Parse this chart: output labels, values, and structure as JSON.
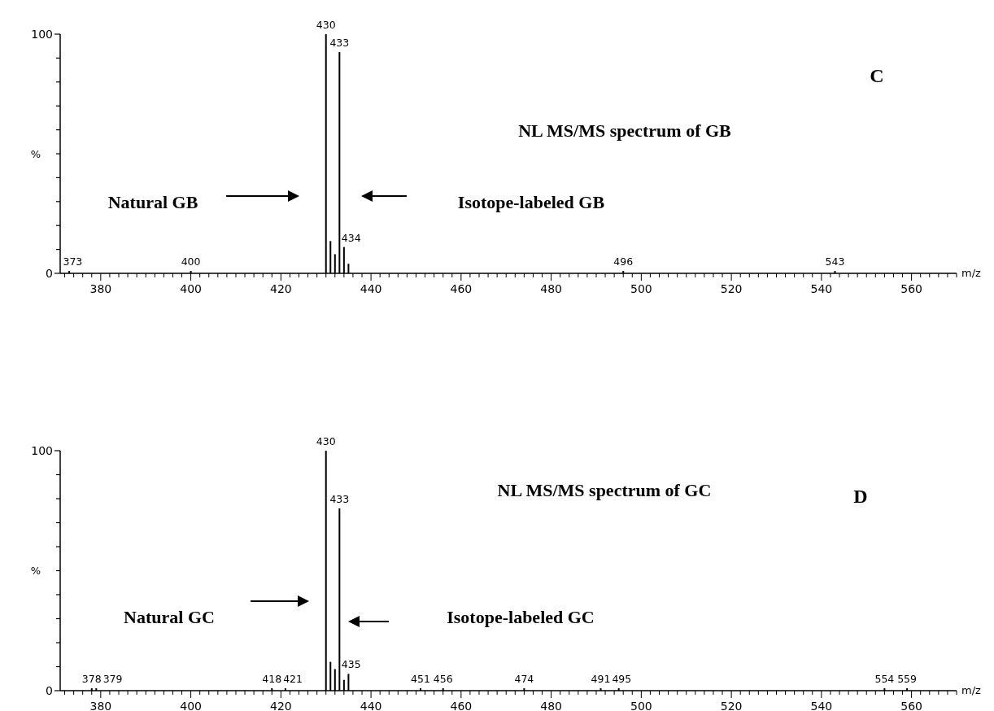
{
  "chart_data": [
    {
      "type": "bar",
      "title": "NL MS/MS spectrum of GB",
      "xlabel": "m/z",
      "ylabel": "%",
      "annotations": [
        "C",
        "Natural GB",
        "Isotope-labeled GB",
        {
          "text": "373",
          "x": 373,
          "y": 1
        },
        {
          "text": "400",
          "x": 400,
          "y": 1
        },
        {
          "text": "430",
          "x": 430,
          "y": 100
        },
        {
          "text": "433",
          "x": 433,
          "y": 92.5
        },
        {
          "text": "434",
          "x": 434,
          "y": 11
        },
        {
          "text": "496",
          "x": 496,
          "y": 1
        },
        {
          "text": "543",
          "x": 543,
          "y": 1
        }
      ],
      "x": [
        373,
        400,
        430,
        431,
        432,
        433,
        434,
        435,
        496,
        543
      ],
      "series": [
        {
          "color": "#000000",
          "values": [
            1,
            1,
            100,
            13.5,
            8,
            92.5,
            11,
            4,
            1,
            1
          ]
        }
      ],
      "xlim": [
        371,
        570
      ],
      "ylim": [
        0,
        100
      ],
      "xticks": [
        {
          "value": 372,
          "label": null
        },
        {
          "value": 374,
          "label": null
        },
        {
          "value": 376,
          "label": null
        },
        {
          "value": 378,
          "label": null
        },
        380,
        {
          "value": 382,
          "label": null
        },
        {
          "value": 384,
          "label": null
        },
        {
          "value": 386,
          "label": null
        },
        {
          "value": 388,
          "label": null
        },
        {
          "value": 390,
          "label": null
        },
        {
          "value": 392,
          "label": null
        },
        {
          "value": 394,
          "label": null
        },
        {
          "value": 396,
          "label": null
        },
        {
          "value": 398,
          "label": null
        },
        400,
        {
          "value": 402,
          "label": null
        },
        {
          "value": 404,
          "label": null
        },
        {
          "value": 406,
          "label": null
        },
        {
          "value": 408,
          "label": null
        },
        {
          "value": 410,
          "label": null
        },
        {
          "value": 412,
          "label": null
        },
        {
          "value": 414,
          "label": null
        },
        {
          "value": 416,
          "label": null
        },
        {
          "value": 418,
          "label": null
        },
        420,
        {
          "value": 422,
          "label": null
        },
        {
          "value": 424,
          "label": null
        },
        {
          "value": 426,
          "label": null
        },
        {
          "value": 428,
          "label": null
        },
        {
          "value": 430,
          "label": null
        },
        {
          "value": 432,
          "label": null
        },
        {
          "value": 434,
          "label": null
        },
        {
          "value": 436,
          "label": null
        },
        {
          "value": 438,
          "label": null
        },
        440,
        {
          "value": 442,
          "label": null
        },
        {
          "value": 444,
          "label": null
        },
        {
          "value": 446,
          "label": null
        },
        {
          "value": 448,
          "label": null
        },
        {
          "value": 450,
          "label": null
        },
        {
          "value": 452,
          "label": null
        },
        {
          "value": 454,
          "label": null
        },
        {
          "value": 456,
          "label": null
        },
        {
          "value": 458,
          "label": null
        },
        460,
        {
          "value": 462,
          "label": null
        },
        {
          "value": 464,
          "label": null
        },
        {
          "value": 466,
          "label": null
        },
        {
          "value": 468,
          "label": null
        },
        {
          "value": 470,
          "label": null
        },
        {
          "value": 472,
          "label": null
        },
        {
          "value": 474,
          "label": null
        },
        {
          "value": 476,
          "label": null
        },
        {
          "value": 478,
          "label": null
        },
        480,
        {
          "value": 482,
          "label": null
        },
        {
          "value": 484,
          "label": null
        },
        {
          "value": 486,
          "label": null
        },
        {
          "value": 488,
          "label": null
        },
        {
          "value": 490,
          "label": null
        },
        {
          "value": 492,
          "label": null
        },
        {
          "value": 494,
          "label": null
        },
        {
          "value": 496,
          "label": null
        },
        {
          "value": 498,
          "label": null
        },
        500,
        {
          "value": 502,
          "label": null
        },
        {
          "value": 504,
          "label": null
        },
        {
          "value": 506,
          "label": null
        },
        {
          "value": 508,
          "label": null
        },
        {
          "value": 510,
          "label": null
        },
        {
          "value": 512,
          "label": null
        },
        {
          "value": 514,
          "label": null
        },
        {
          "value": 516,
          "label": null
        },
        {
          "value": 518,
          "label": null
        },
        520,
        {
          "value": 522,
          "label": null
        },
        {
          "value": 524,
          "label": null
        },
        {
          "value": 526,
          "label": null
        },
        {
          "value": 528,
          "label": null
        },
        {
          "value": 530,
          "label": null
        },
        {
          "value": 532,
          "label": null
        },
        {
          "value": 534,
          "label": null
        },
        {
          "value": 536,
          "label": null
        },
        {
          "value": 538,
          "label": null
        },
        540,
        {
          "value": 542,
          "label": null
        },
        {
          "value": 544,
          "label": null
        },
        {
          "value": 546,
          "label": null
        },
        {
          "value": 548,
          "label": null
        },
        {
          "value": 550,
          "label": null
        },
        {
          "value": 552,
          "label": null
        },
        {
          "value": 554,
          "label": null
        },
        {
          "value": 556,
          "label": null
        },
        {
          "value": 558,
          "label": null
        },
        560,
        {
          "value": 562,
          "label": null
        },
        {
          "value": 564,
          "label": null
        },
        {
          "value": 566,
          "label": null
        },
        {
          "value": 568,
          "label": null
        },
        {
          "value": 570,
          "label": null
        }
      ],
      "yticks": [
        {
          "value": 0,
          "label": "0"
        },
        {
          "value": 10,
          "label": null
        },
        {
          "value": 20,
          "label": null
        },
        {
          "value": 30,
          "label": null
        },
        {
          "value": 40,
          "label": null
        },
        {
          "value": 50,
          "label": null
        },
        {
          "value": 60,
          "label": null
        },
        {
          "value": 70,
          "label": null
        },
        {
          "value": 80,
          "label": null
        },
        {
          "value": 90,
          "label": null
        },
        {
          "value": 100,
          "label": "100"
        }
      ]
    },
    {
      "type": "bar",
      "title": "NL MS/MS spectrum of GC",
      "xlabel": "m/z",
      "ylabel": "%",
      "annotations": [
        "D",
        "Natural GC",
        "Isotope-labeled GC",
        {
          "text": "378",
          "x": 378,
          "y": 1
        },
        {
          "text": "379",
          "x": 379,
          "y": 1
        },
        {
          "text": "418",
          "x": 418,
          "y": 1
        },
        {
          "text": "421",
          "x": 421,
          "y": 1
        },
        {
          "text": "430",
          "x": 430,
          "y": 100
        },
        {
          "text": "433",
          "x": 433,
          "y": 76
        },
        {
          "text": "435",
          "x": 435,
          "y": 7
        },
        {
          "text": "451",
          "x": 451,
          "y": 1
        },
        {
          "text": "456",
          "x": 456,
          "y": 1
        },
        {
          "text": "474",
          "x": 474,
          "y": 1
        },
        {
          "text": "491",
          "x": 491,
          "y": 1
        },
        {
          "text": "495",
          "x": 495,
          "y": 1
        },
        {
          "text": "554",
          "x": 554,
          "y": 1
        },
        {
          "text": "559",
          "x": 559,
          "y": 1
        }
      ],
      "x": [
        378,
        379,
        418,
        421,
        430,
        431,
        432,
        433,
        434,
        435,
        451,
        456,
        474,
        491,
        495,
        554,
        559
      ],
      "series": [
        {
          "color": "#000000",
          "values": [
            1,
            1,
            1,
            1,
            100,
            12,
            9,
            76,
            4.5,
            7,
            1,
            1,
            1,
            1,
            1,
            1,
            1
          ]
        }
      ],
      "xlim": [
        371,
        570
      ],
      "ylim": [
        0,
        100
      ],
      "xticks": [
        {
          "value": 372,
          "label": null
        },
        {
          "value": 374,
          "label": null
        },
        {
          "value": 376,
          "label": null
        },
        {
          "value": 378,
          "label": null
        },
        380,
        {
          "value": 382,
          "label": null
        },
        {
          "value": 384,
          "label": null
        },
        {
          "value": 386,
          "label": null
        },
        {
          "value": 388,
          "label": null
        },
        {
          "value": 390,
          "label": null
        },
        {
          "value": 392,
          "label": null
        },
        {
          "value": 394,
          "label": null
        },
        {
          "value": 396,
          "label": null
        },
        {
          "value": 398,
          "label": null
        },
        400,
        {
          "value": 402,
          "label": null
        },
        {
          "value": 404,
          "label": null
        },
        {
          "value": 406,
          "label": null
        },
        {
          "value": 408,
          "label": null
        },
        {
          "value": 410,
          "label": null
        },
        {
          "value": 412,
          "label": null
        },
        {
          "value": 414,
          "label": null
        },
        {
          "value": 416,
          "label": null
        },
        {
          "value": 418,
          "label": null
        },
        420,
        {
          "value": 422,
          "label": null
        },
        {
          "value": 424,
          "label": null
        },
        {
          "value": 426,
          "label": null
        },
        {
          "value": 428,
          "label": null
        },
        {
          "value": 430,
          "label": null
        },
        {
          "value": 432,
          "label": null
        },
        {
          "value": 434,
          "label": null
        },
        {
          "value": 436,
          "label": null
        },
        {
          "value": 438,
          "label": null
        },
        440,
        {
          "value": 442,
          "label": null
        },
        {
          "value": 444,
          "label": null
        },
        {
          "value": 446,
          "label": null
        },
        {
          "value": 448,
          "label": null
        },
        {
          "value": 450,
          "label": null
        },
        {
          "value": 452,
          "label": null
        },
        {
          "value": 454,
          "label": null
        },
        {
          "value": 456,
          "label": null
        },
        {
          "value": 458,
          "label": null
        },
        460,
        {
          "value": 462,
          "label": null
        },
        {
          "value": 464,
          "label": null
        },
        {
          "value": 466,
          "label": null
        },
        {
          "value": 468,
          "label": null
        },
        {
          "value": 470,
          "label": null
        },
        {
          "value": 472,
          "label": null
        },
        {
          "value": 474,
          "label": null
        },
        {
          "value": 476,
          "label": null
        },
        {
          "value": 478,
          "label": null
        },
        480,
        {
          "value": 482,
          "label": null
        },
        {
          "value": 484,
          "label": null
        },
        {
          "value": 486,
          "label": null
        },
        {
          "value": 488,
          "label": null
        },
        {
          "value": 490,
          "label": null
        },
        {
          "value": 492,
          "label": null
        },
        {
          "value": 494,
          "label": null
        },
        {
          "value": 496,
          "label": null
        },
        {
          "value": 498,
          "label": null
        },
        500,
        {
          "value": 502,
          "label": null
        },
        {
          "value": 504,
          "label": null
        },
        {
          "value": 506,
          "label": null
        },
        {
          "value": 508,
          "label": null
        },
        {
          "value": 510,
          "label": null
        },
        {
          "value": 512,
          "label": null
        },
        {
          "value": 514,
          "label": null
        },
        {
          "value": 516,
          "label": null
        },
        {
          "value": 518,
          "label": null
        },
        520,
        {
          "value": 522,
          "label": null
        },
        {
          "value": 524,
          "label": null
        },
        {
          "value": 526,
          "label": null
        },
        {
          "value": 528,
          "label": null
        },
        {
          "value": 530,
          "label": null
        },
        {
          "value": 532,
          "label": null
        },
        {
          "value": 534,
          "label": null
        },
        {
          "value": 536,
          "label": null
        },
        {
          "value": 538,
          "label": null
        },
        540,
        {
          "value": 542,
          "label": null
        },
        {
          "value": 544,
          "label": null
        },
        {
          "value": 546,
          "label": null
        },
        {
          "value": 548,
          "label": null
        },
        {
          "value": 550,
          "label": null
        },
        {
          "value": 552,
          "label": null
        },
        {
          "value": 554,
          "label": null
        },
        {
          "value": 556,
          "label": null
        },
        {
          "value": 558,
          "label": null
        },
        560,
        {
          "value": 562,
          "label": null
        },
        {
          "value": 564,
          "label": null
        },
        {
          "value": 566,
          "label": null
        },
        {
          "value": 568,
          "label": null
        },
        {
          "value": 570,
          "label": null
        }
      ],
      "yticks": [
        {
          "value": 0,
          "label": "0"
        },
        {
          "value": 10,
          "label": null
        },
        {
          "value": 20,
          "label": null
        },
        {
          "value": 30,
          "label": null
        },
        {
          "value": 40,
          "label": null
        },
        {
          "value": 50,
          "label": null
        },
        {
          "value": 60,
          "label": null
        },
        {
          "value": 70,
          "label": null
        },
        {
          "value": 80,
          "label": null
        },
        {
          "value": 90,
          "label": null
        },
        {
          "value": 100,
          "label": "100"
        }
      ]
    }
  ]
}
